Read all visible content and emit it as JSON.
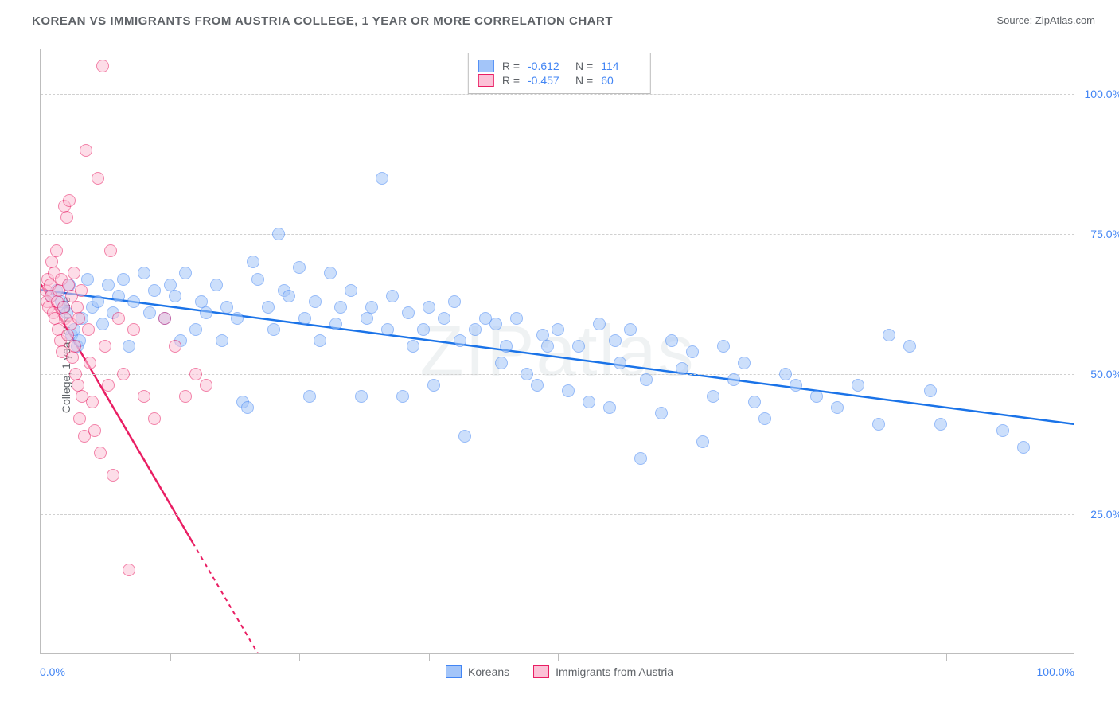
{
  "title": "KOREAN VS IMMIGRANTS FROM AUSTRIA COLLEGE, 1 YEAR OR MORE CORRELATION CHART",
  "source": "Source: ZipAtlas.com",
  "ylabel": "College, 1 year or more",
  "watermark": "ZIPatlas",
  "chart": {
    "type": "scatter",
    "background_color": "#ffffff",
    "grid_color": "#d0d0d0",
    "axis_color": "#bdbdbd",
    "tick_color": "#4285f4",
    "text_color": "#5f6368",
    "xlim": [
      0,
      100
    ],
    "ylim": [
      0,
      108
    ],
    "x_tick_label_left": "0.0%",
    "x_tick_label_right": "100.0%",
    "y_ticks": [
      25,
      50,
      75,
      100
    ],
    "y_tick_labels": [
      "25.0%",
      "50.0%",
      "75.0%",
      "100.0%"
    ],
    "x_minor_ticks": [
      12.5,
      25,
      37.5,
      50,
      62.5,
      75,
      87.5
    ],
    "point_radius": 8,
    "point_opacity": 0.55
  },
  "series": [
    {
      "name": "Koreans",
      "fill_color": "#a3c5f9",
      "stroke_color": "#4285f4",
      "line_color": "#1a73e8",
      "R": "-0.612",
      "N": "114",
      "trend": {
        "x1": 0,
        "y1": 65,
        "x2": 100,
        "y2": 41
      },
      "points": [
        [
          1.0,
          64
        ],
        [
          1.5,
          65
        ],
        [
          2.0,
          63
        ],
        [
          2.2,
          62
        ],
        [
          2.5,
          61
        ],
        [
          2.8,
          66
        ],
        [
          3.0,
          57
        ],
        [
          3.2,
          58
        ],
        [
          3.5,
          55
        ],
        [
          3.8,
          56
        ],
        [
          4.0,
          60
        ],
        [
          4.5,
          67
        ],
        [
          5.0,
          62
        ],
        [
          5.5,
          63
        ],
        [
          6.0,
          59
        ],
        [
          6.5,
          66
        ],
        [
          7.0,
          61
        ],
        [
          7.5,
          64
        ],
        [
          8.0,
          67
        ],
        [
          8.5,
          55
        ],
        [
          9.0,
          63
        ],
        [
          10,
          68
        ],
        [
          10.5,
          61
        ],
        [
          11,
          65
        ],
        [
          12,
          60
        ],
        [
          12.5,
          66
        ],
        [
          13,
          64
        ],
        [
          13.5,
          56
        ],
        [
          14,
          68
        ],
        [
          15,
          58
        ],
        [
          15.5,
          63
        ],
        [
          16,
          61
        ],
        [
          17,
          66
        ],
        [
          17.5,
          56
        ],
        [
          18,
          62
        ],
        [
          19,
          60
        ],
        [
          19.5,
          45
        ],
        [
          20,
          44
        ],
        [
          23,
          75
        ],
        [
          20.5,
          70
        ],
        [
          21,
          67
        ],
        [
          22,
          62
        ],
        [
          22.5,
          58
        ],
        [
          23.5,
          65
        ],
        [
          24,
          64
        ],
        [
          25,
          69
        ],
        [
          25.5,
          60
        ],
        [
          26,
          46
        ],
        [
          26.5,
          63
        ],
        [
          27,
          56
        ],
        [
          28,
          68
        ],
        [
          28.5,
          59
        ],
        [
          29,
          62
        ],
        [
          30,
          65
        ],
        [
          31,
          46
        ],
        [
          31.5,
          60
        ],
        [
          32,
          62
        ],
        [
          33,
          85
        ],
        [
          33.5,
          58
        ],
        [
          34,
          64
        ],
        [
          35,
          46
        ],
        [
          35.5,
          61
        ],
        [
          36,
          55
        ],
        [
          37,
          58
        ],
        [
          37.5,
          62
        ],
        [
          38,
          48
        ],
        [
          39,
          60
        ],
        [
          40,
          63
        ],
        [
          40.5,
          56
        ],
        [
          41,
          39
        ],
        [
          42,
          58
        ],
        [
          43,
          60
        ],
        [
          44,
          59
        ],
        [
          44.5,
          52
        ],
        [
          45,
          55
        ],
        [
          46,
          60
        ],
        [
          47,
          50
        ],
        [
          48,
          48
        ],
        [
          48.5,
          57
        ],
        [
          49,
          55
        ],
        [
          50,
          58
        ],
        [
          51,
          47
        ],
        [
          52,
          55
        ],
        [
          53,
          45
        ],
        [
          54,
          59
        ],
        [
          55,
          44
        ],
        [
          55.5,
          56
        ],
        [
          56,
          52
        ],
        [
          57,
          58
        ],
        [
          58,
          35
        ],
        [
          58.5,
          49
        ],
        [
          60,
          43
        ],
        [
          61,
          56
        ],
        [
          62,
          51
        ],
        [
          63,
          54
        ],
        [
          64,
          38
        ],
        [
          65,
          46
        ],
        [
          66,
          55
        ],
        [
          67,
          49
        ],
        [
          68,
          52
        ],
        [
          69,
          45
        ],
        [
          70,
          42
        ],
        [
          72,
          50
        ],
        [
          73,
          48
        ],
        [
          75,
          46
        ],
        [
          77,
          44
        ],
        [
          79,
          48
        ],
        [
          81,
          41
        ],
        [
          82,
          57
        ],
        [
          84,
          55
        ],
        [
          86,
          47
        ],
        [
          87,
          41
        ],
        [
          93,
          40
        ],
        [
          95,
          37
        ]
      ]
    },
    {
      "name": "Immigrants from Austria",
      "fill_color": "#fcc2d7",
      "stroke_color": "#e91e63",
      "line_color": "#e91e63",
      "R": "-0.457",
      "N": "60",
      "trend": {
        "x1": 0,
        "y1": 66,
        "x2": 21,
        "y2": 0
      },
      "points": [
        [
          0.5,
          65
        ],
        [
          0.6,
          63
        ],
        [
          0.7,
          67
        ],
        [
          0.8,
          62
        ],
        [
          0.9,
          66
        ],
        [
          1.0,
          64
        ],
        [
          1.1,
          70
        ],
        [
          1.2,
          61
        ],
        [
          1.3,
          68
        ],
        [
          1.4,
          60
        ],
        [
          1.5,
          72
        ],
        [
          1.6,
          63
        ],
        [
          1.7,
          58
        ],
        [
          1.8,
          65
        ],
        [
          1.9,
          56
        ],
        [
          2.0,
          67
        ],
        [
          2.1,
          54
        ],
        [
          2.2,
          62
        ],
        [
          2.3,
          80
        ],
        [
          2.4,
          60
        ],
        [
          2.5,
          78
        ],
        [
          2.6,
          57
        ],
        [
          2.7,
          66
        ],
        [
          2.8,
          81
        ],
        [
          2.9,
          59
        ],
        [
          3.0,
          64
        ],
        [
          3.1,
          53
        ],
        [
          3.2,
          68
        ],
        [
          3.3,
          55
        ],
        [
          3.4,
          50
        ],
        [
          3.5,
          62
        ],
        [
          3.6,
          48
        ],
        [
          3.7,
          60
        ],
        [
          3.8,
          42
        ],
        [
          3.9,
          65
        ],
        [
          4.0,
          46
        ],
        [
          4.2,
          39
        ],
        [
          4.4,
          90
        ],
        [
          4.6,
          58
        ],
        [
          4.8,
          52
        ],
        [
          5.0,
          45
        ],
        [
          5.2,
          40
        ],
        [
          5.5,
          85
        ],
        [
          5.8,
          36
        ],
        [
          6.0,
          105
        ],
        [
          6.2,
          55
        ],
        [
          6.5,
          48
        ],
        [
          6.8,
          72
        ],
        [
          7.0,
          32
        ],
        [
          7.5,
          60
        ],
        [
          8.0,
          50
        ],
        [
          8.5,
          15
        ],
        [
          9.0,
          58
        ],
        [
          10,
          46
        ],
        [
          11,
          42
        ],
        [
          12,
          60
        ],
        [
          13,
          55
        ],
        [
          14,
          46
        ],
        [
          15,
          50
        ],
        [
          16,
          48
        ]
      ]
    }
  ],
  "stats_box": {
    "R_label": "R =",
    "N_label": "N ="
  },
  "legend_labels": [
    "Koreans",
    "Immigrants from Austria"
  ]
}
